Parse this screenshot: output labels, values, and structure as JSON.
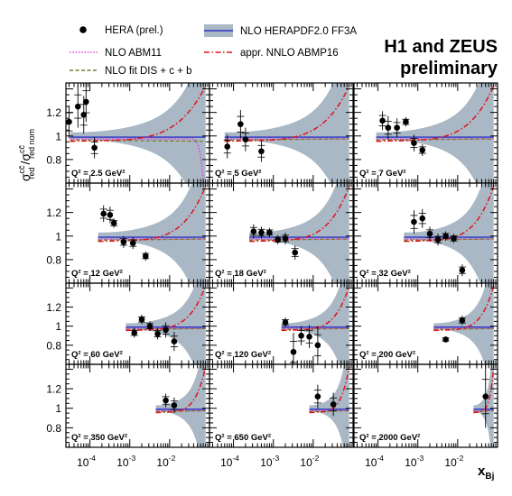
{
  "header": {
    "title_line1": "H1 and ZEUS",
    "title_line2": "preliminary"
  },
  "legend": {
    "hera": "HERA (prel.)",
    "abm11": "NLO ABM11",
    "fit": "NLO fit DIS + c + b",
    "herapdf": "NLO HERAPDF2.0 FF3A",
    "abmp16": "appr. NNLO ABMP16"
  },
  "colors": {
    "band": "#a9b8c4",
    "herapdf": "#2b32c8",
    "abm11": "#e43ce4",
    "fit": "#7a7a2a",
    "abmp16": "#e0141e",
    "data": "#000000"
  },
  "axes": {
    "xlabel": "x",
    "xlabel_sub": "Bj",
    "ylabel_sigma": "σ",
    "ylabel_sup": "cc̄",
    "ylabel_sub1": "red",
    "ylabel_sub2": "red nom",
    "x_ticks": [
      "10^-4",
      "10^-3",
      "10^-2"
    ],
    "y_ticks": [
      "0.8",
      "1",
      "1.2"
    ]
  },
  "chart_data": {
    "type": "scatter",
    "x_scale": "log",
    "xlim": [
      2.5e-05,
      0.1
    ],
    "ylim": [
      0.6,
      1.45
    ],
    "grid": false,
    "legend_placement": "top",
    "panels": [
      {
        "q2": "2.5",
        "label": "Q² = 2.5 GeV²",
        "xmin": 3.2e-05,
        "xmax": 0.08,
        "points": [
          {
            "x": 3e-05,
            "y": 1.12,
            "e": 0.14
          },
          {
            "x": 5e-05,
            "y": 1.25,
            "e": 0.18
          },
          {
            "x": 7e-05,
            "y": 1.18,
            "e": 0.16
          },
          {
            "x": 8e-05,
            "y": 1.29,
            "e": 0.17
          },
          {
            "x": 0.00013,
            "y": 0.9,
            "e": 0.09
          }
        ]
      },
      {
        "q2": "5",
        "label": "Q² = 5 GeV²",
        "xmin": 6e-05,
        "xmax": 0.08,
        "points": [
          {
            "x": 7e-05,
            "y": 0.91,
            "e": 0.1
          },
          {
            "x": 0.00015,
            "y": 1.1,
            "e": 0.12
          },
          {
            "x": 0.0002,
            "y": 0.97,
            "e": 0.1
          },
          {
            "x": 0.0005,
            "y": 0.87,
            "e": 0.09
          }
        ]
      },
      {
        "q2": "7",
        "label": "Q² = 7 GeV²",
        "xmin": 9e-05,
        "xmax": 0.08,
        "points": [
          {
            "x": 0.00013,
            "y": 1.13,
            "e": 0.08
          },
          {
            "x": 0.00018,
            "y": 1.07,
            "e": 0.1
          },
          {
            "x": 0.0003,
            "y": 1.07,
            "e": 0.08
          },
          {
            "x": 0.0005,
            "y": 1.12,
            "e": 0.04
          },
          {
            "x": 0.0008,
            "y": 0.94,
            "e": 0.07
          },
          {
            "x": 0.0013,
            "y": 0.88,
            "e": 0.05
          }
        ]
      },
      {
        "q2": "12",
        "label": "Q² = 12 GeV²",
        "xmin": 0.00016,
        "xmax": 0.08,
        "points": [
          {
            "x": 0.00022,
            "y": 1.19,
            "e": 0.07
          },
          {
            "x": 0.00032,
            "y": 1.18,
            "e": 0.07
          },
          {
            "x": 0.0004,
            "y": 1.11,
            "e": 0.04
          },
          {
            "x": 0.0007,
            "y": 0.95,
            "e": 0.05
          },
          {
            "x": 0.0012,
            "y": 0.94,
            "e": 0.05
          },
          {
            "x": 0.0025,
            "y": 0.83,
            "e": 0.04
          }
        ]
      },
      {
        "q2": "18",
        "label": "Q² = 18 GeV²",
        "xmin": 0.00025,
        "xmax": 0.08,
        "points": [
          {
            "x": 0.00032,
            "y": 1.04,
            "e": 0.06
          },
          {
            "x": 0.0005,
            "y": 1.03,
            "e": 0.05
          },
          {
            "x": 0.0008,
            "y": 1.03,
            "e": 0.04
          },
          {
            "x": 0.0013,
            "y": 0.97,
            "e": 0.04
          },
          {
            "x": 0.002,
            "y": 0.98,
            "e": 0.05
          },
          {
            "x": 0.0035,
            "y": 0.86,
            "e": 0.06
          }
        ]
      },
      {
        "q2": "32",
        "label": "Q² = 32 GeV²",
        "xmin": 0.00045,
        "xmax": 0.08,
        "points": [
          {
            "x": 0.0008,
            "y": 1.12,
            "e": 0.1
          },
          {
            "x": 0.0013,
            "y": 1.15,
            "e": 0.08
          },
          {
            "x": 0.002,
            "y": 1.02,
            "e": 0.06
          },
          {
            "x": 0.0032,
            "y": 0.97,
            "e": 0.05
          },
          {
            "x": 0.005,
            "y": 1.0,
            "e": 0.04
          },
          {
            "x": 0.008,
            "y": 0.98,
            "e": 0.04
          },
          {
            "x": 0.013,
            "y": 0.71,
            "e": 0.05
          }
        ]
      },
      {
        "q2": "60",
        "label": "Q² = 60 GeV²",
        "xmin": 0.0008,
        "xmax": 0.08,
        "points": [
          {
            "x": 0.0013,
            "y": 0.93,
            "e": 0.05
          },
          {
            "x": 0.002,
            "y": 1.07,
            "e": 0.05
          },
          {
            "x": 0.0032,
            "y": 1.0,
            "e": 0.05
          },
          {
            "x": 0.005,
            "y": 0.92,
            "e": 0.06
          },
          {
            "x": 0.008,
            "y": 0.96,
            "e": 0.08
          },
          {
            "x": 0.013,
            "y": 0.84,
            "e": 0.1
          }
        ]
      },
      {
        "q2": "120",
        "label": "Q² = 120 GeV²",
        "xmin": 0.0016,
        "xmax": 0.08,
        "points": [
          {
            "x": 0.002,
            "y": 1.04,
            "e": 0.05
          },
          {
            "x": 0.0032,
            "y": 0.73,
            "e": 0.2
          },
          {
            "x": 0.005,
            "y": 0.9,
            "e": 0.1
          },
          {
            "x": 0.008,
            "y": 0.89,
            "e": 0.12
          },
          {
            "x": 0.013,
            "y": 0.8,
            "e": 0.2
          }
        ]
      },
      {
        "q2": "200",
        "label": "Q² = 200 GeV²",
        "xmin": 0.0025,
        "xmax": 0.08,
        "points": [
          {
            "x": 0.005,
            "y": 0.86,
            "e": 0.03
          },
          {
            "x": 0.013,
            "y": 1.06,
            "e": 0.05
          }
        ]
      },
      {
        "q2": "350",
        "label": "Q² = 350 GeV²",
        "xmin": 0.0045,
        "xmax": 0.08,
        "points": [
          {
            "x": 0.008,
            "y": 1.08,
            "e": 0.07
          },
          {
            "x": 0.013,
            "y": 1.03,
            "e": 0.08
          }
        ]
      },
      {
        "q2": "650",
        "label": "Q² = 650 GeV²",
        "xmin": 0.008,
        "xmax": 0.08,
        "points": [
          {
            "x": 0.013,
            "y": 1.12,
            "e": 0.12
          },
          {
            "x": 0.032,
            "y": 1.04,
            "e": 0.12
          }
        ]
      },
      {
        "q2": "2000",
        "label": "Q² = 2000 GeV²",
        "xmin": 0.025,
        "xmax": 0.08,
        "points": [
          {
            "x": 0.05,
            "y": 1.12,
            "e": 0.32
          }
        ]
      }
    ]
  }
}
